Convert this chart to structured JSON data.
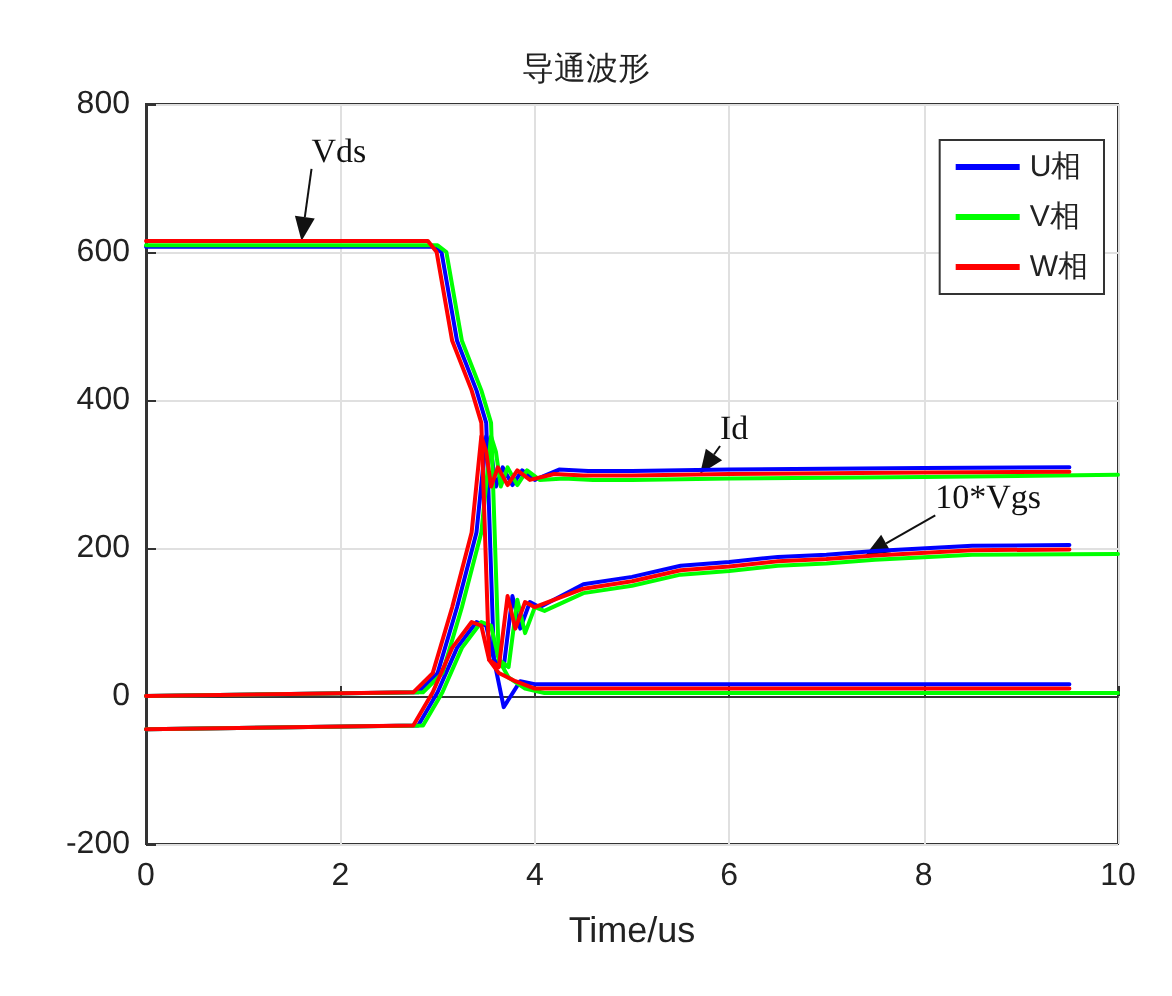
{
  "chart_data": {
    "type": "line",
    "title": "导通波形",
    "xlabel": "Time/us",
    "xlim": [
      0,
      10
    ],
    "xticks": [
      0,
      2,
      4,
      6,
      8,
      10
    ],
    "ylim": [
      -200,
      800
    ],
    "yticks": [
      -200,
      0,
      200,
      400,
      600,
      800
    ],
    "grid": true,
    "legend": "top right",
    "marker": "none",
    "line_style": "solid",
    "annotations": [
      {
        "text": "Vds",
        "x": 1.6,
        "y": 615
      },
      {
        "text": "Id",
        "x": 5.7,
        "y": 300
      },
      {
        "text": "10*Vgs",
        "x": 7.4,
        "y": 190
      }
    ],
    "series": [
      {
        "name": "U相",
        "color": "#0000ff",
        "x": [
          0,
          2.95,
          3.04,
          3.2,
          3.4,
          3.5,
          3.58,
          3.68,
          3.85,
          4,
          5,
          7,
          9.5
        ],
        "values": [
          607,
          607,
          600,
          480,
          413,
          369,
          49,
          -15,
          20,
          16,
          16,
          16,
          16
        ]
      },
      {
        "color": "#0000ff",
        "x": [
          0,
          2.8,
          3,
          3.2,
          3.4,
          3.5,
          3.55,
          3.6,
          3.67,
          3.77,
          3.87,
          4,
          4.25,
          4.55,
          5,
          6,
          8,
          9.5
        ],
        "values": [
          0,
          5,
          31,
          120,
          221,
          351,
          330,
          283,
          309,
          285,
          305,
          292,
          306,
          304,
          304,
          306,
          308,
          309
        ]
      },
      {
        "color": "#0000ff",
        "x": [
          0,
          2.8,
          3,
          3.2,
          3.4,
          3.5,
          3.58,
          3.68,
          3.77,
          3.85,
          3.95,
          4.05,
          4.5,
          5,
          5.5,
          6,
          6.5,
          7,
          7.5,
          8.5,
          9.5
        ],
        "values": [
          -45,
          -40,
          5,
          65,
          100,
          95,
          49,
          39,
          135,
          91,
          127,
          120,
          151,
          161,
          176,
          181,
          188,
          191,
          196,
          203,
          204
        ]
      },
      {
        "name": "V相",
        "color": "#00ff00",
        "x": [
          0,
          3,
          3.09,
          3.25,
          3.45,
          3.55,
          3.63,
          3.73,
          3.9,
          4.1,
          5,
          7,
          10
        ],
        "values": [
          609,
          609,
          600,
          480,
          413,
          369,
          49,
          25,
          10,
          4,
          4,
          4,
          4
        ]
      },
      {
        "color": "#00ff00",
        "x": [
          0,
          2.85,
          3.05,
          3.25,
          3.45,
          3.55,
          3.6,
          3.65,
          3.72,
          3.82,
          3.92,
          4.05,
          4.3,
          4.6,
          5,
          6,
          8,
          10
        ],
        "values": [
          0,
          5,
          31,
          120,
          221,
          351,
          330,
          283,
          309,
          285,
          305,
          292,
          294,
          292,
          292,
          294,
          296,
          299
        ]
      },
      {
        "color": "#00ff00",
        "x": [
          0,
          2.85,
          3.05,
          3.25,
          3.45,
          3.55,
          3.63,
          3.73,
          3.82,
          3.9,
          4,
          4.1,
          4.5,
          5,
          5.5,
          6,
          6.5,
          7,
          7.5,
          8.5,
          10
        ],
        "values": [
          -45,
          -40,
          5,
          65,
          100,
          95,
          49,
          39,
          130,
          85,
          120,
          115,
          139,
          149,
          164,
          169,
          176,
          179,
          184,
          191,
          192
        ]
      },
      {
        "name": "W相",
        "color": "#ff0000",
        "x": [
          0,
          2.9,
          2.99,
          3.15,
          3.35,
          3.45,
          3.53,
          3.63,
          3.8,
          4,
          5,
          7,
          9.5
        ],
        "values": [
          615,
          615,
          600,
          480,
          413,
          369,
          49,
          31,
          20,
          10,
          10,
          10,
          10
        ]
      },
      {
        "color": "#ff0000",
        "x": [
          0,
          2.75,
          2.95,
          3.15,
          3.35,
          3.45,
          3.5,
          3.55,
          3.62,
          3.72,
          3.82,
          3.95,
          4.2,
          4.5,
          5,
          6,
          8,
          9.5
        ],
        "values": [
          0,
          5,
          31,
          120,
          221,
          351,
          330,
          283,
          309,
          285,
          305,
          292,
          300,
          298,
          298,
          300,
          302,
          303
        ]
      },
      {
        "color": "#ff0000",
        "x": [
          0,
          2.75,
          2.95,
          3.15,
          3.35,
          3.45,
          3.53,
          3.63,
          3.72,
          3.8,
          3.9,
          4,
          4.5,
          5,
          5.5,
          6,
          6.5,
          7,
          7.5,
          8.5,
          9.5
        ],
        "values": [
          -45,
          -40,
          5,
          65,
          100,
          95,
          49,
          39,
          135,
          91,
          127,
          120,
          145,
          155,
          170,
          175,
          182,
          185,
          190,
          197,
          198
        ]
      }
    ]
  }
}
